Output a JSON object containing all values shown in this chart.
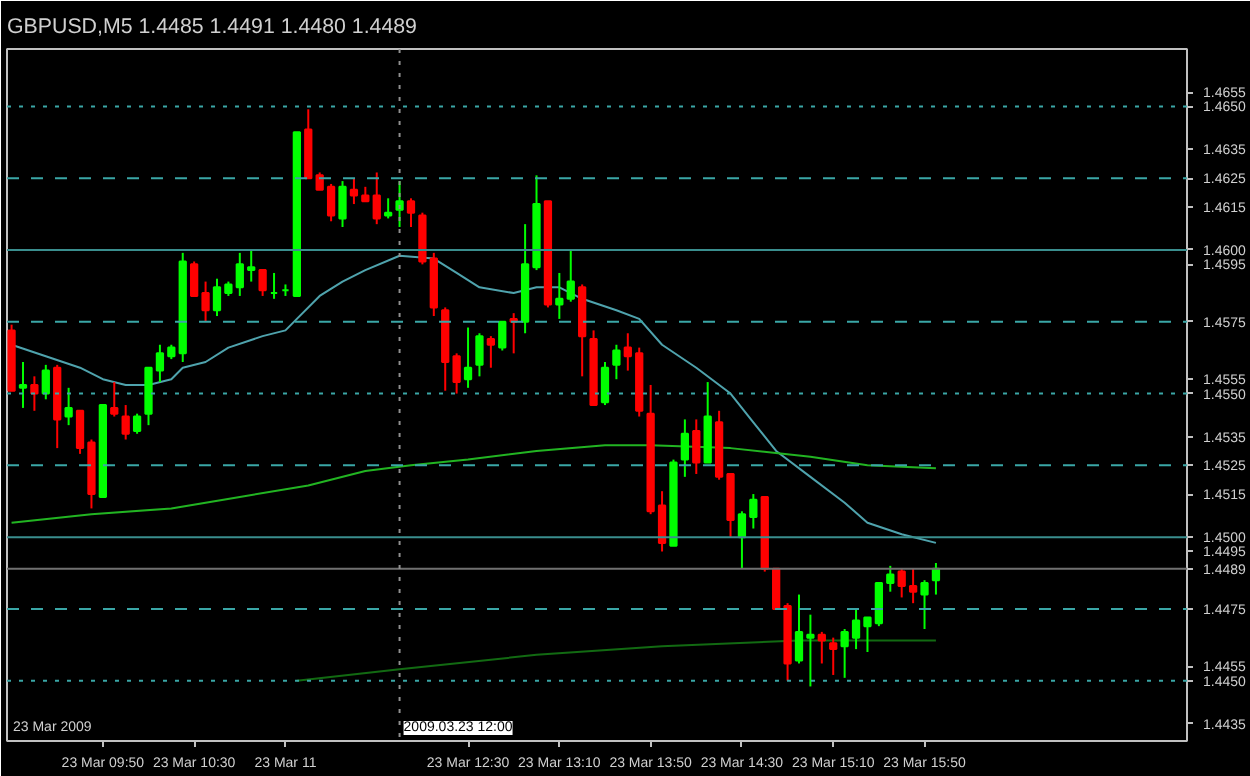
{
  "chart_data": {
    "type": "candlestick",
    "title": "GBPUSD,M5  1.4485 1.4491 1.4480 1.4489",
    "annotations": [
      "23 Mar 2009"
    ],
    "x": [
      "2009-03-23T09:10",
      "2009-03-23T09:15",
      "2009-03-23T09:20",
      "2009-03-23T09:25",
      "2009-03-23T09:30",
      "2009-03-23T09:35",
      "2009-03-23T09:40",
      "2009-03-23T09:45",
      "2009-03-23T09:50",
      "2009-03-23T09:55",
      "2009-03-23T10:00",
      "2009-03-23T10:05",
      "2009-03-23T10:10",
      "2009-03-23T10:15",
      "2009-03-23T10:20",
      "2009-03-23T10:25",
      "2009-03-23T10:30",
      "2009-03-23T10:35",
      "2009-03-23T10:40",
      "2009-03-23T10:45",
      "2009-03-23T10:50",
      "2009-03-23T10:55",
      "2009-03-23T11:00",
      "2009-03-23T11:05",
      "2009-03-23T11:10",
      "2009-03-23T11:15",
      "2009-03-23T11:20",
      "2009-03-23T11:25",
      "2009-03-23T11:30",
      "2009-03-23T11:35",
      "2009-03-23T11:40",
      "2009-03-23T11:45",
      "2009-03-23T11:50",
      "2009-03-23T11:55",
      "2009-03-23T12:00",
      "2009-03-23T12:05",
      "2009-03-23T12:10",
      "2009-03-23T12:15",
      "2009-03-23T12:20",
      "2009-03-23T12:25",
      "2009-03-23T12:30",
      "2009-03-23T12:35",
      "2009-03-23T12:40",
      "2009-03-23T12:45",
      "2009-03-23T12:50",
      "2009-03-23T12:55",
      "2009-03-23T13:00",
      "2009-03-23T13:05",
      "2009-03-23T13:10",
      "2009-03-23T13:15",
      "2009-03-23T13:20",
      "2009-03-23T13:25",
      "2009-03-23T13:30",
      "2009-03-23T13:35",
      "2009-03-23T13:40",
      "2009-03-23T13:45",
      "2009-03-23T13:50",
      "2009-03-23T13:55",
      "2009-03-23T14:00",
      "2009-03-23T14:05",
      "2009-03-23T14:10",
      "2009-03-23T14:15",
      "2009-03-23T14:20",
      "2009-03-23T14:25",
      "2009-03-23T14:30",
      "2009-03-23T14:35",
      "2009-03-23T14:40",
      "2009-03-23T14:45",
      "2009-03-23T14:50",
      "2009-03-23T14:55",
      "2009-03-23T15:00",
      "2009-03-23T15:05",
      "2009-03-23T15:10",
      "2009-03-23T15:15",
      "2009-03-23T15:20",
      "2009-03-23T15:25",
      "2009-03-23T15:30",
      "2009-03-23T15:35",
      "2009-03-23T15:40",
      "2009-03-23T15:45",
      "2009-03-23T15:50",
      "2009-03-23T15:55"
    ],
    "ohlc": [
      [
        1.4572,
        1.4574,
        1.4551,
        1.4551
      ],
      [
        1.4552,
        1.4561,
        1.4545,
        1.4553
      ],
      [
        1.4553,
        1.4556,
        1.4544,
        1.455
      ],
      [
        1.455,
        1.456,
        1.4548,
        1.4558
      ],
      [
        1.4559,
        1.456,
        1.4531,
        1.4541
      ],
      [
        1.4542,
        1.4552,
        1.4539,
        1.4545
      ],
      [
        1.4544,
        1.4544,
        1.4529,
        1.4531
      ],
      [
        1.4533,
        1.4534,
        1.451,
        1.4515
      ],
      [
        1.4514,
        1.4546,
        1.4514,
        1.4546
      ],
      [
        1.4545,
        1.4554,
        1.4542,
        1.4543
      ],
      [
        1.4542,
        1.4546,
        1.4534,
        1.4536
      ],
      [
        1.4537,
        1.4543,
        1.4536,
        1.4542
      ],
      [
        1.4543,
        1.4559,
        1.4539,
        1.4559
      ],
      [
        1.4558,
        1.4567,
        1.4554,
        1.4564
      ],
      [
        1.4563,
        1.4567,
        1.4562,
        1.4566
      ],
      [
        1.4564,
        1.4599,
        1.4561,
        1.4596
      ],
      [
        1.4595,
        1.4596,
        1.4584,
        1.4584
      ],
      [
        1.4585,
        1.4589,
        1.4575,
        1.4579
      ],
      [
        1.4579,
        1.459,
        1.4577,
        1.4587
      ],
      [
        1.4585,
        1.4589,
        1.4584,
        1.4588
      ],
      [
        1.4587,
        1.4599,
        1.4584,
        1.4595
      ],
      [
        1.4593,
        1.46,
        1.4589,
        1.4594
      ],
      [
        1.4593,
        1.4593,
        1.4584,
        1.4586
      ],
      [
        1.4585,
        1.4592,
        1.4583,
        1.4585
      ],
      [
        1.4586,
        1.4588,
        1.4584,
        1.4586
      ],
      [
        1.4584,
        1.4641,
        1.4584,
        1.4641
      ],
      [
        1.4642,
        1.4649,
        1.4625,
        1.4625
      ],
      [
        1.4626,
        1.4627,
        1.4621,
        1.4621
      ],
      [
        1.4622,
        1.4623,
        1.461,
        1.4612
      ],
      [
        1.4611,
        1.4624,
        1.4608,
        1.4622
      ],
      [
        1.4621,
        1.4625,
        1.4616,
        1.4619
      ],
      [
        1.4619,
        1.4622,
        1.4617,
        1.4617
      ],
      [
        1.4619,
        1.4627,
        1.4609,
        1.4611
      ],
      [
        1.4612,
        1.4618,
        1.4611,
        1.4613
      ],
      [
        1.4614,
        1.4624,
        1.4608,
        1.4617
      ],
      [
        1.4617,
        1.4618,
        1.4608,
        1.4613
      ],
      [
        1.4612,
        1.4613,
        1.4595,
        1.4596
      ],
      [
        1.4597,
        1.4599,
        1.4577,
        1.458
      ],
      [
        1.4579,
        1.458,
        1.4551,
        1.4561
      ],
      [
        1.4563,
        1.4564,
        1.455,
        1.4554
      ],
      [
        1.4555,
        1.4573,
        1.4552,
        1.4559
      ],
      [
        1.456,
        1.4571,
        1.4556,
        1.457
      ],
      [
        1.4569,
        1.457,
        1.4559,
        1.4567
      ],
      [
        1.4566,
        1.4575,
        1.4565,
        1.4575
      ],
      [
        1.4576,
        1.4578,
        1.4564,
        1.4575
      ],
      [
        1.4575,
        1.4609,
        1.4571,
        1.4595
      ],
      [
        1.4594,
        1.4626,
        1.4593,
        1.4616
      ],
      [
        1.4617,
        1.4617,
        1.458,
        1.4581
      ],
      [
        1.4581,
        1.4592,
        1.4576,
        1.4583
      ],
      [
        1.4583,
        1.46,
        1.4582,
        1.4589
      ],
      [
        1.4587,
        1.4588,
        1.4556,
        1.457
      ],
      [
        1.4569,
        1.4572,
        1.4546,
        1.4546
      ],
      [
        1.4547,
        1.4561,
        1.4546,
        1.4559
      ],
      [
        1.456,
        1.4567,
        1.4555,
        1.4565
      ],
      [
        1.4566,
        1.4571,
        1.4558,
        1.4563
      ],
      [
        1.4564,
        1.4566,
        1.4542,
        1.4544
      ],
      [
        1.4543,
        1.4553,
        1.4508,
        1.4509
      ],
      [
        1.4511,
        1.4516,
        1.4495,
        1.4498
      ],
      [
        1.4497,
        1.4527,
        1.4497,
        1.4526
      ],
      [
        1.4527,
        1.4541,
        1.4521,
        1.4536
      ],
      [
        1.4537,
        1.4541,
        1.4522,
        1.4526
      ],
      [
        1.4526,
        1.4554,
        1.4526,
        1.4542
      ],
      [
        1.454,
        1.4544,
        1.452,
        1.4521
      ],
      [
        1.4522,
        1.4522,
        1.45,
        1.4506
      ],
      [
        1.45,
        1.4509,
        1.4489,
        1.4508
      ],
      [
        1.4507,
        1.4515,
        1.4503,
        1.4513
      ],
      [
        1.4514,
        1.4514,
        1.4488,
        1.4489
      ],
      [
        1.4489,
        1.4489,
        1.4475,
        1.4475
      ],
      [
        1.4476,
        1.4477,
        1.445,
        1.4456
      ],
      [
        1.4457,
        1.448,
        1.4456,
        1.4467
      ],
      [
        1.4465,
        1.4473,
        1.4448,
        1.4466
      ],
      [
        1.4466,
        1.4467,
        1.4456,
        1.4464
      ],
      [
        1.4463,
        1.4465,
        1.4452,
        1.4461
      ],
      [
        1.4462,
        1.4468,
        1.4451,
        1.4467
      ],
      [
        1.4465,
        1.4475,
        1.4461,
        1.4471
      ],
      [
        1.4469,
        1.4472,
        1.446,
        1.4472
      ],
      [
        1.447,
        1.4484,
        1.4469,
        1.4484
      ],
      [
        1.4484,
        1.449,
        1.4481,
        1.4487
      ],
      [
        1.4488,
        1.4489,
        1.4479,
        1.4483
      ],
      [
        1.4483,
        1.4489,
        1.4477,
        1.4481
      ],
      [
        1.448,
        1.4485,
        1.4468,
        1.4484
      ],
      [
        1.4485,
        1.4491,
        1.448,
        1.4489
      ]
    ],
    "colors": [
      "#ff0000",
      "#00ff00",
      "#ff0000",
      "#00ff00",
      "#ff0000",
      "#00ff00",
      "#ff0000",
      "#ff0000",
      "#00ff00",
      "#ff0000",
      "#ff0000",
      "#00ff00",
      "#00ff00",
      "#00ff00",
      "#00ff00",
      "#00ff00",
      "#ff0000",
      "#ff0000",
      "#00ff00",
      "#00ff00",
      "#00ff00",
      "#00ff00",
      "#ff0000",
      "#00ff00",
      "#00ff00",
      "#00ff00",
      "#ff0000",
      "#ff0000",
      "#ff0000",
      "#00ff00",
      "#ff0000",
      "#ff0000",
      "#ff0000",
      "#00ff00",
      "#00ff00",
      "#ff0000",
      "#ff0000",
      "#ff0000",
      "#ff0000",
      "#ff0000",
      "#00ff00",
      "#00ff00",
      "#ff0000",
      "#00ff00",
      "#ff0000",
      "#00ff00",
      "#00ff00",
      "#ff0000",
      "#00ff00",
      "#00ff00",
      "#ff0000",
      "#ff0000",
      "#00ff00",
      "#00ff00",
      "#ff0000",
      "#ff0000",
      "#ff0000",
      "#ff0000",
      "#00ff00",
      "#00ff00",
      "#ff0000",
      "#00ff00",
      "#ff0000",
      "#ff0000",
      "#00ff00",
      "#00ff00",
      "#ff0000",
      "#ff0000",
      "#ff0000",
      "#00ff00",
      "#00ff00",
      "#ff0000",
      "#ff0000",
      "#00ff00",
      "#00ff00",
      "#00ff00",
      "#00ff00",
      "#00ff00",
      "#ff0000",
      "#ff0000",
      "#00ff00",
      "#00ff00"
    ],
    "series": [
      {
        "type": "line",
        "color": "#4fa3ad",
        "x": [
          "2009-03-23T09:10",
          "2009-03-23T09:25",
          "2009-03-23T09:40",
          "2009-03-23T09:50",
          "2009-03-23T10:00",
          "2009-03-23T10:10",
          "2009-03-23T10:20",
          "2009-03-23T10:25",
          "2009-03-23T10:35",
          "2009-03-23T10:45",
          "2009-03-23T11:00",
          "2009-03-23T11:10",
          "2009-03-23T11:15",
          "2009-03-23T11:25",
          "2009-03-23T11:35",
          "2009-03-23T11:45",
          "2009-03-23T12:00",
          "2009-03-23T12:15",
          "2009-03-23T12:25",
          "2009-03-23T12:35",
          "2009-03-23T12:50",
          "2009-03-23T13:00",
          "2009-03-23T13:10",
          "2009-03-23T13:20",
          "2009-03-23T13:35",
          "2009-03-23T13:45",
          "2009-03-23T13:55",
          "2009-03-23T14:10",
          "2009-03-23T14:25",
          "2009-03-23T14:35",
          "2009-03-23T14:45",
          "2009-03-23T15:00",
          "2009-03-23T15:15",
          "2009-03-23T15:25",
          "2009-03-23T15:40",
          "2009-03-23T15:55"
        ],
        "values": [
          1.4567,
          1.4563,
          1.4559,
          1.4555,
          1.4553,
          1.4553,
          1.4555,
          1.4559,
          1.4561,
          1.4566,
          1.457,
          1.4572,
          1.4576,
          1.4584,
          1.4589,
          1.4593,
          1.4598,
          1.4597,
          1.4592,
          1.4587,
          1.4585,
          1.4587,
          1.4587,
          1.4583,
          1.4579,
          1.4576,
          1.4567,
          1.4559,
          1.455,
          1.454,
          1.453,
          1.4521,
          1.4512,
          1.4505,
          1.4501,
          1.4498
        ]
      },
      {
        "type": "line",
        "color": "#22b422",
        "x": [
          "2009-03-23T09:10",
          "2009-03-23T09:45",
          "2009-03-23T10:20",
          "2009-03-23T10:50",
          "2009-03-23T11:20",
          "2009-03-23T11:45",
          "2009-03-23T12:05",
          "2009-03-23T12:30",
          "2009-03-23T13:00",
          "2009-03-23T13:30",
          "2009-03-23T13:50",
          "2009-03-23T14:25",
          "2009-03-23T15:00",
          "2009-03-23T15:25",
          "2009-03-23T15:55"
        ],
        "values": [
          1.4505,
          1.4508,
          1.451,
          1.4514,
          1.4518,
          1.4523,
          1.4525,
          1.4527,
          1.453,
          1.4532,
          1.4532,
          1.4531,
          1.4528,
          1.4525,
          1.4524
        ]
      },
      {
        "type": "line",
        "color": "#126a12",
        "x": [
          "2009-03-23T11:15",
          "2009-03-23T12:00",
          "2009-03-23T13:00",
          "2009-03-23T13:55",
          "2009-03-23T14:55",
          "2009-03-23T15:55"
        ],
        "values": [
          1.445,
          1.4454,
          1.4459,
          1.4462,
          1.4464,
          1.4464
        ]
      }
    ],
    "xlim": [
      "2009-03-23T09:08",
      "2009-03-23T17:45"
    ],
    "xticks": [
      {
        "value": "2009-03-23T09:50",
        "label": "23 Mar 09:50"
      },
      {
        "value": "2009-03-23T10:30",
        "label": "23 Mar 10:30"
      },
      {
        "value": "2009-03-23T11:10",
        "label": "23 Mar 11"
      },
      {
        "value": "2009-03-23T12:30",
        "label": "23 Mar 12:30"
      },
      {
        "value": "2009-03-23T13:10",
        "label": "23 Mar 13:10"
      },
      {
        "value": "2009-03-23T13:50",
        "label": "23 Mar 13:50"
      },
      {
        "value": "2009-03-23T14:30",
        "label": "23 Mar 14:30"
      },
      {
        "value": "2009-03-23T15:10",
        "label": "23 Mar 15:10"
      },
      {
        "value": "2009-03-23T15:50",
        "label": "23 Mar 15:50"
      }
    ],
    "ylim": [
      1.4429,
      1.467
    ],
    "yticks": [
      1.4655,
      1.4635,
      1.4615,
      1.4595,
      1.4555,
      1.4535,
      1.4515,
      1.4495,
      1.4455,
      1.4435
    ],
    "ref_lines": [
      {
        "axis": "y",
        "value": 1.465,
        "label": "1.4650",
        "color": "#3aa6a6",
        "line_style": "dotted"
      },
      {
        "axis": "y",
        "value": 1.4625,
        "label": "1.4625",
        "color": "#3aa6a6",
        "line_style": "dashed"
      },
      {
        "axis": "y",
        "value": 1.46,
        "label": "1.4600",
        "color": "#3a8e8e",
        "line_style": "solid"
      },
      {
        "axis": "y",
        "value": 1.4575,
        "label": "1.4575",
        "color": "#3aa6a6",
        "line_style": "dashed"
      },
      {
        "axis": "y",
        "value": 1.455,
        "label": "1.4550",
        "color": "#3aa6a6",
        "line_style": "dotted"
      },
      {
        "axis": "y",
        "value": 1.4525,
        "label": "1.4525",
        "color": "#3aa6a6",
        "line_style": "dashed"
      },
      {
        "axis": "y",
        "value": 1.45,
        "label": "1.4500",
        "color": "#3a8e8e",
        "line_style": "solid"
      },
      {
        "axis": "y",
        "value": 1.4489,
        "label": "1.4489",
        "color": "#707070",
        "line_style": "solid"
      },
      {
        "axis": "y",
        "value": 1.4475,
        "label": "1.4475",
        "color": "#3aa6a6",
        "line_style": "dashed"
      },
      {
        "axis": "y",
        "value": 1.445,
        "label": "1.4450",
        "color": "#3aa6a6",
        "line_style": "dotted"
      },
      {
        "axis": "x",
        "value": "2009-03-23T12:00",
        "label": "2009.03.23 12:00",
        "color": "#909090",
        "line_style": "dotted"
      }
    ]
  }
}
